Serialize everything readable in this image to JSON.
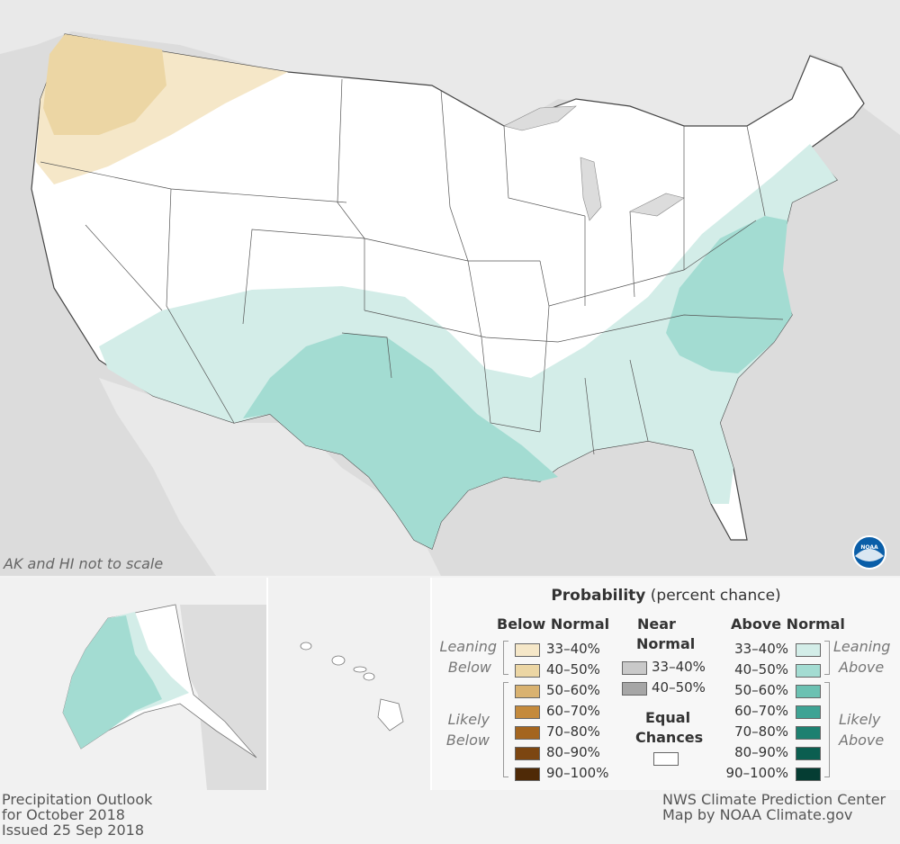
{
  "map": {
    "scale_note": "AK and HI not to scale",
    "logo_text": "NOAA"
  },
  "legend": {
    "title_bold": "Probability",
    "title_rest": "(percent chance)",
    "below": {
      "header": "Below Normal",
      "leaning_label": [
        "Leaning",
        "Below"
      ],
      "likely_label": [
        "Likely",
        "Below"
      ],
      "items": [
        {
          "label": "33–40%",
          "color": "#f5e7c8"
        },
        {
          "label": "40–50%",
          "color": "#ecd6a4"
        },
        {
          "label": "50–60%",
          "color": "#d9b270"
        },
        {
          "label": "60–70%",
          "color": "#c48a3c"
        },
        {
          "label": "70–80%",
          "color": "#a4651f"
        },
        {
          "label": "80–90%",
          "color": "#7c4611"
        },
        {
          "label": "90–100%",
          "color": "#4f2a07"
        }
      ]
    },
    "near": {
      "header": [
        "Near",
        "Normal"
      ],
      "items": [
        {
          "label": "33–40%",
          "color": "#c9c9c9"
        },
        {
          "label": "40–50%",
          "color": "#a6a6a6"
        }
      ]
    },
    "equal": {
      "header": [
        "Equal",
        "Chances"
      ],
      "color": "#ffffff"
    },
    "above": {
      "header": "Above Normal",
      "leaning_label": [
        "Leaning",
        "Above"
      ],
      "likely_label": [
        "Likely",
        "Above"
      ],
      "items": [
        {
          "label": "33–40%",
          "color": "#d3ede8"
        },
        {
          "label": "40–50%",
          "color": "#a3dcd2"
        },
        {
          "label": "50–60%",
          "color": "#6bc1b2"
        },
        {
          "label": "60–70%",
          "color": "#3ea394"
        },
        {
          "label": "70–80%",
          "color": "#1d8070"
        },
        {
          "label": "80–90%",
          "color": "#0b5e50"
        },
        {
          "label": "90–100%",
          "color": "#053d33"
        }
      ]
    }
  },
  "footer": {
    "left": [
      "Precipitation Outlook",
      "for October 2018",
      "Issued 25 Sep 2018"
    ],
    "right": [
      "NWS Climate Prediction Center",
      "Map by NOAA Climate.gov"
    ]
  }
}
